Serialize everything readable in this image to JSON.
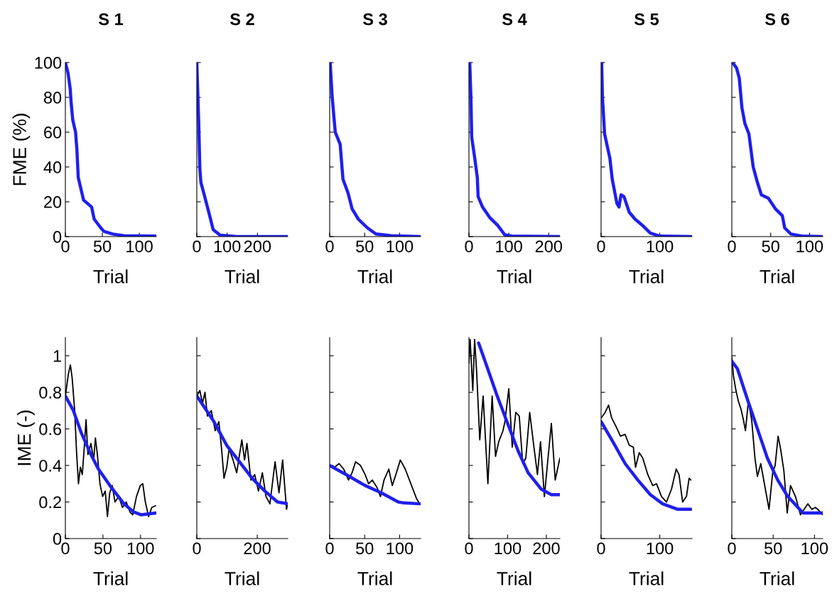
{
  "chart_data": [
    {
      "type": "line",
      "title": "S 1",
      "xlabel": "Trial",
      "ylabel": "FME (%)",
      "xlim": [
        0,
        123
      ],
      "xticks": [
        0,
        50,
        100
      ],
      "ylim": [
        0,
        100
      ],
      "yticks": [
        0,
        20,
        40,
        60,
        80,
        100
      ],
      "series": [
        {
          "color": "#1f1fee",
          "x": [
            0,
            3.6,
            6.5,
            8,
            10,
            13.8,
            15.6,
            17.4,
            24.6,
            30,
            35.5,
            39,
            48,
            52,
            64,
            79,
            123
          ],
          "values": [
            100,
            94,
            85,
            76,
            67,
            60,
            50,
            34,
            21,
            19,
            17,
            10,
            5,
            3,
            1.5,
            0.5,
            0.3
          ]
        }
      ]
    },
    {
      "type": "line",
      "title": "S 2",
      "xlabel": "Trial",
      "xlim": [
        0,
        300
      ],
      "xticks": [
        0,
        100,
        200
      ],
      "ylim": [
        0,
        100
      ],
      "yticks": [
        0,
        20,
        40,
        60,
        80,
        100
      ],
      "tick_labels": "x",
      "series": [
        {
          "color": "#1f1fee",
          "x": [
            0,
            6.4,
            10,
            13.6,
            23,
            32,
            41,
            54,
            77,
            132,
            300
          ],
          "values": [
            100,
            65,
            39,
            31,
            25,
            19,
            13,
            4,
            0.8,
            0,
            0
          ]
        }
      ]
    },
    {
      "type": "line",
      "title": "S 3",
      "xlabel": "Trial",
      "xlim": [
        0,
        130
      ],
      "xticks": [
        0,
        50,
        100
      ],
      "ylim": [
        0,
        100
      ],
      "yticks": [
        0,
        20,
        40,
        60,
        80,
        100
      ],
      "tick_labels": "x",
      "series": [
        {
          "color": "#1f1fee",
          "x": [
            0.7,
            3.6,
            8,
            15,
            19,
            26.3,
            32,
            41,
            54,
            66,
            88,
            130
          ],
          "values": [
            100,
            80,
            60,
            53,
            33,
            25,
            16,
            10,
            5,
            1.5,
            0.5,
            0
          ]
        }
      ]
    },
    {
      "type": "line",
      "title": "S 4",
      "xlabel": "Trial",
      "xlim": [
        0,
        228
      ],
      "xticks": [
        0,
        100,
        200
      ],
      "ylim": [
        0,
        100
      ],
      "yticks": [
        0,
        20,
        40,
        60,
        80,
        100
      ],
      "tick_labels": "x",
      "series": [
        {
          "color": "#1f1fee",
          "x": [
            2,
            5,
            7,
            14,
            21,
            23,
            34,
            52,
            72,
            90,
            107,
            228
          ],
          "values": [
            100,
            80,
            57,
            46,
            34,
            23,
            17,
            11,
            6.5,
            1,
            0.3,
            0
          ]
        }
      ]
    },
    {
      "type": "line",
      "title": "S 5",
      "xlabel": "Trial",
      "xlim": [
        0,
        155
      ],
      "xticks": [
        0,
        100
      ],
      "ylim": [
        0,
        100
      ],
      "yticks": [
        0,
        20,
        40,
        60,
        80,
        100
      ],
      "tick_labels": "x",
      "series": [
        {
          "color": "#1f1fee",
          "x": [
            1,
            2.3,
            6,
            15,
            19,
            27,
            30.5,
            34,
            39,
            48,
            58,
            72,
            84,
            100,
            155
          ],
          "values": [
            100,
            80,
            59,
            45,
            33,
            19,
            17,
            24,
            23,
            14,
            10,
            6,
            2,
            0.3,
            0
          ]
        }
      ]
    },
    {
      "type": "line",
      "title": "S 6",
      "xlabel": "Trial",
      "xlim": [
        0,
        117
      ],
      "xticks": [
        0,
        50,
        100
      ],
      "ylim": [
        0,
        100
      ],
      "yticks": [
        0,
        20,
        40,
        60,
        80,
        100
      ],
      "tick_labels": "x",
      "series": [
        {
          "color": "#1f1fee",
          "x": [
            0.7,
            6,
            9.6,
            13,
            16.8,
            22,
            27.5,
            33,
            38,
            47,
            56,
            65,
            68,
            76,
            90,
            117
          ],
          "values": [
            100,
            97,
            91,
            74,
            65,
            59,
            40,
            31,
            24,
            22,
            16,
            12,
            5,
            1.5,
            0.3,
            0
          ]
        }
      ]
    },
    {
      "type": "line",
      "xlabel": "Trial",
      "ylabel": "IME (-)",
      "xlim": [
        0,
        121
      ],
      "xticks": [
        0,
        50,
        100
      ],
      "ylim": [
        0,
        1.1
      ],
      "yticks": [
        0,
        0.2,
        0.4,
        0.6,
        0.8,
        1
      ],
      "series": [
        {
          "color": "#000000",
          "x": [
            0,
            4,
            6.7,
            9,
            12.4,
            14.8,
            17.4,
            20,
            22.5,
            25,
            27.5,
            30,
            34,
            37.6,
            40,
            42.6,
            46,
            49.6,
            53,
            56,
            59,
            62.4,
            66,
            71,
            76,
            81,
            86,
            89.6,
            94.6,
            99.7,
            103,
            106.4,
            110.7,
            115,
            120
          ],
          "values": [
            0.78,
            0.9,
            0.95,
            0.88,
            0.7,
            0.48,
            0.3,
            0.39,
            0.35,
            0.49,
            0.65,
            0.46,
            0.52,
            0.43,
            0.55,
            0.46,
            0.3,
            0.23,
            0.26,
            0.12,
            0.25,
            0.29,
            0.2,
            0.23,
            0.17,
            0.2,
            0.145,
            0.13,
            0.23,
            0.29,
            0.3,
            0.2,
            0.12,
            0.17,
            0.18
          ]
        },
        {
          "color": "#1f1fee",
          "x": [
            0,
            10.7,
            21,
            34,
            44,
            61,
            78,
            91,
            101,
            121
          ],
          "values": [
            0.78,
            0.7,
            0.58,
            0.46,
            0.38,
            0.28,
            0.19,
            0.145,
            0.13,
            0.14
          ]
        }
      ]
    },
    {
      "type": "line",
      "xlabel": "Trial",
      "xlim": [
        0,
        301
      ],
      "xticks": [
        0,
        200
      ],
      "ylim": [
        0,
        1.1
      ],
      "yticks": [
        0,
        0.2,
        0.4,
        0.6,
        0.8,
        1
      ],
      "tick_labels": "x",
      "series": [
        {
          "color": "#000000",
          "x": [
            0,
            10,
            18.6,
            27,
            35,
            48,
            61,
            73,
            82,
            90,
            99,
            107,
            120,
            132,
            149,
            158,
            166,
            179,
            191.6,
            204,
            217,
            229,
            242,
            259,
            272,
            284,
            297,
            300
          ],
          "values": [
            0.78,
            0.81,
            0.74,
            0.8,
            0.67,
            0.7,
            0.59,
            0.64,
            0.49,
            0.33,
            0.39,
            0.49,
            0.43,
            0.36,
            0.54,
            0.43,
            0.52,
            0.32,
            0.35,
            0.26,
            0.36,
            0.23,
            0.19,
            0.42,
            0.25,
            0.43,
            0.16,
            0.19
          ]
        },
        {
          "color": "#1f1fee",
          "x": [
            0,
            56.5,
            99,
            141,
            183,
            225,
            267,
            301
          ],
          "values": [
            0.78,
            0.64,
            0.51,
            0.42,
            0.33,
            0.26,
            0.2,
            0.19
          ]
        }
      ]
    },
    {
      "type": "line",
      "xlabel": "Trial",
      "xlim": [
        0,
        130
      ],
      "xticks": [
        0,
        50,
        100
      ],
      "ylim": [
        0,
        1.1
      ],
      "yticks": [
        0,
        0.2,
        0.4,
        0.6,
        0.8,
        1
      ],
      "tick_labels": "x",
      "series": [
        {
          "color": "#000000",
          "x": [
            0,
            6.8,
            13.5,
            20,
            27,
            32,
            37,
            44,
            50.7,
            55.7,
            61,
            67.6,
            72.6,
            77.7,
            84.5,
            89.5,
            94.6,
            101,
            108,
            124,
            127
          ],
          "values": [
            0.4,
            0.39,
            0.41,
            0.38,
            0.32,
            0.36,
            0.42,
            0.4,
            0.35,
            0.3,
            0.32,
            0.28,
            0.23,
            0.32,
            0.38,
            0.29,
            0.35,
            0.43,
            0.38,
            0.22,
            0.2
          ]
        },
        {
          "color": "#1f1fee",
          "x": [
            0,
            23.6,
            50.7,
            74,
            98,
            106,
            130
          ],
          "values": [
            0.4,
            0.35,
            0.29,
            0.25,
            0.2,
            0.195,
            0.19
          ]
        }
      ]
    },
    {
      "type": "line",
      "xlabel": "Trial",
      "xlim": [
        0,
        235
      ],
      "xticks": [
        0,
        100,
        200
      ],
      "ylim": [
        0,
        1.1
      ],
      "yticks": [
        0,
        0.2,
        0.4,
        0.6,
        0.8,
        1
      ],
      "tick_labels": "x",
      "series": [
        {
          "color": "#000000",
          "x": [
            0,
            3,
            10,
            14.7,
            20,
            28,
            36.7,
            49,
            60,
            68.7,
            77,
            88,
            93,
            103,
            112,
            121,
            130,
            139,
            147,
            157,
            168,
            177,
            185,
            195,
            203,
            213,
            223,
            235
          ],
          "values": [
            0.96,
            1.09,
            0.81,
            1.09,
            0.91,
            0.54,
            0.78,
            0.3,
            0.78,
            0.45,
            0.53,
            0.59,
            0.64,
            0.82,
            0.5,
            0.69,
            0.67,
            0.41,
            0.44,
            0.69,
            0.5,
            0.35,
            0.53,
            0.23,
            0.41,
            0.63,
            0.32,
            0.44
          ]
        },
        {
          "color": "#1f1fee",
          "x": [
            25,
            46.7,
            73,
            100,
            127,
            153,
            187,
            213,
            235
          ],
          "values": [
            1.07,
            0.94,
            0.78,
            0.63,
            0.48,
            0.36,
            0.27,
            0.24,
            0.24
          ]
        }
      ]
    },
    {
      "type": "line",
      "xlabel": "Trial",
      "xlim": [
        0,
        155
      ],
      "xticks": [
        0,
        100
      ],
      "ylim": [
        0,
        1.1
      ],
      "yticks": [
        0,
        0.2,
        0.4,
        0.6,
        0.8,
        1
      ],
      "tick_labels": "x",
      "series": [
        {
          "color": "#000000",
          "x": [
            0,
            7,
            12.8,
            18,
            26,
            33,
            41,
            48,
            55,
            58.7,
            65,
            71,
            79.6,
            88,
            94.5,
            103,
            111.5,
            120,
            128,
            132.8,
            139,
            145.5,
            150,
            153
          ],
          "values": [
            0.66,
            0.69,
            0.73,
            0.66,
            0.61,
            0.56,
            0.57,
            0.51,
            0.5,
            0.39,
            0.47,
            0.44,
            0.35,
            0.29,
            0.3,
            0.23,
            0.2,
            0.27,
            0.38,
            0.35,
            0.2,
            0.23,
            0.33,
            0.32
          ]
        },
        {
          "color": "#1f1fee",
          "x": [
            0,
            20,
            41,
            62.6,
            84,
            105,
            130.6,
            153
          ],
          "values": [
            0.64,
            0.53,
            0.41,
            0.32,
            0.24,
            0.19,
            0.16,
            0.16
          ]
        }
      ]
    },
    {
      "type": "line",
      "xlabel": "Trial",
      "xlim": [
        0,
        110
      ],
      "xticks": [
        0,
        50,
        100
      ],
      "ylim": [
        0,
        1.1
      ],
      "yticks": [
        0,
        0.2,
        0.4,
        0.6,
        0.8,
        1
      ],
      "tick_labels": "x",
      "series": [
        {
          "color": "#000000",
          "x": [
            0,
            2,
            5,
            8,
            11,
            14,
            16.5,
            20,
            24,
            28,
            31,
            35,
            39,
            45,
            49.4,
            52.4,
            56,
            59,
            63,
            67,
            71,
            77,
            83,
            87.5,
            92,
            96.6,
            101,
            104,
            110
          ],
          "values": [
            0.99,
            0.89,
            0.81,
            0.75,
            0.71,
            0.65,
            0.59,
            0.75,
            0.65,
            0.44,
            0.34,
            0.41,
            0.31,
            0.16,
            0.36,
            0.4,
            0.56,
            0.49,
            0.37,
            0.14,
            0.29,
            0.23,
            0.13,
            0.16,
            0.19,
            0.16,
            0.17,
            0.16,
            0.13
          ]
        },
        {
          "color": "#1f1fee",
          "x": [
            0,
            6.7,
            19,
            31,
            43,
            55.5,
            67.7,
            80,
            86,
            110
          ],
          "values": [
            0.97,
            0.93,
            0.76,
            0.6,
            0.44,
            0.32,
            0.23,
            0.17,
            0.14,
            0.14
          ]
        }
      ]
    }
  ]
}
